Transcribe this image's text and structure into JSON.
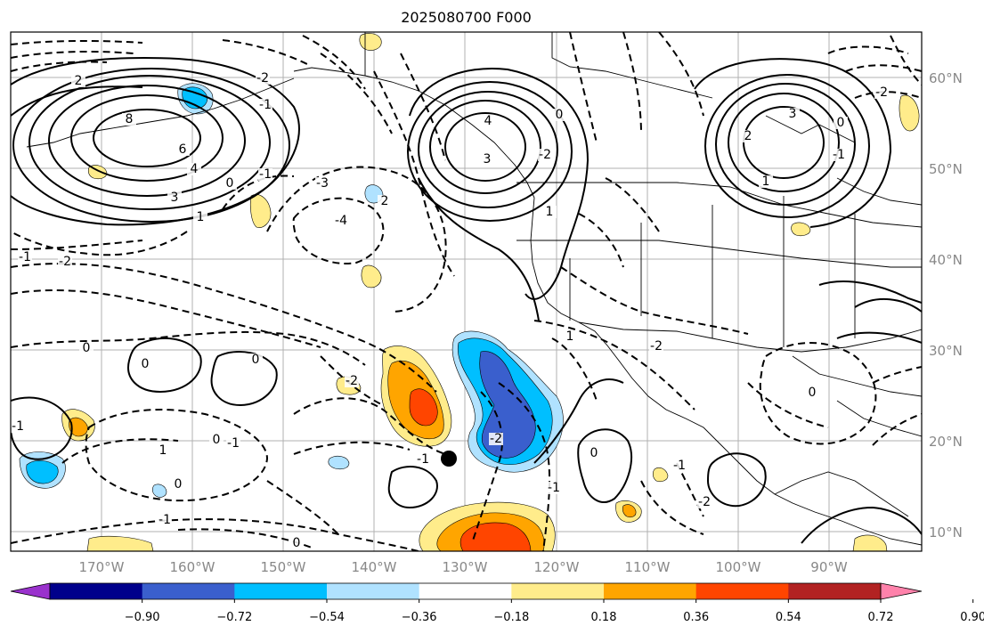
{
  "title": "2025080700 F000",
  "map": {
    "lat_ticks": [
      "60°N",
      "50°N",
      "40°N",
      "30°N",
      "20°N",
      "10°N"
    ],
    "lon_ticks": [
      "170°W",
      "160°W",
      "150°W",
      "140°W",
      "130°W",
      "120°W",
      "110°W",
      "100°W",
      "90°W"
    ],
    "contour_labels": [
      "8",
      "6",
      "4",
      "3",
      "2",
      "1",
      "0",
      "-1",
      "-2",
      "-3",
      "-4",
      "4",
      "3",
      "2",
      "1",
      "0",
      "-1",
      "-2",
      "3",
      "2",
      "1",
      "0",
      "-1",
      "-2",
      "0",
      "-1",
      "0",
      "-2",
      "-1",
      "0",
      "1",
      "0",
      "-1",
      "-2",
      "-1",
      "0",
      "-1",
      "0",
      "-2",
      "-1",
      "0",
      "1",
      "-2",
      "0",
      "-1",
      "-2"
    ]
  },
  "colorbar": {
    "labels": [
      "−0.90",
      "−0.72",
      "−0.54",
      "−0.36",
      "−0.18",
      "0.18",
      "0.36",
      "0.54",
      "0.72",
      "0.90"
    ],
    "colors": [
      "#9a32cd",
      "#00008b",
      "#3a5fcd",
      "#00bfff",
      "#b0e2ff",
      "#ffffff",
      "#ffec8b",
      "#ffa500",
      "#ff4500",
      "#b22222",
      "#ff82ab"
    ]
  }
}
